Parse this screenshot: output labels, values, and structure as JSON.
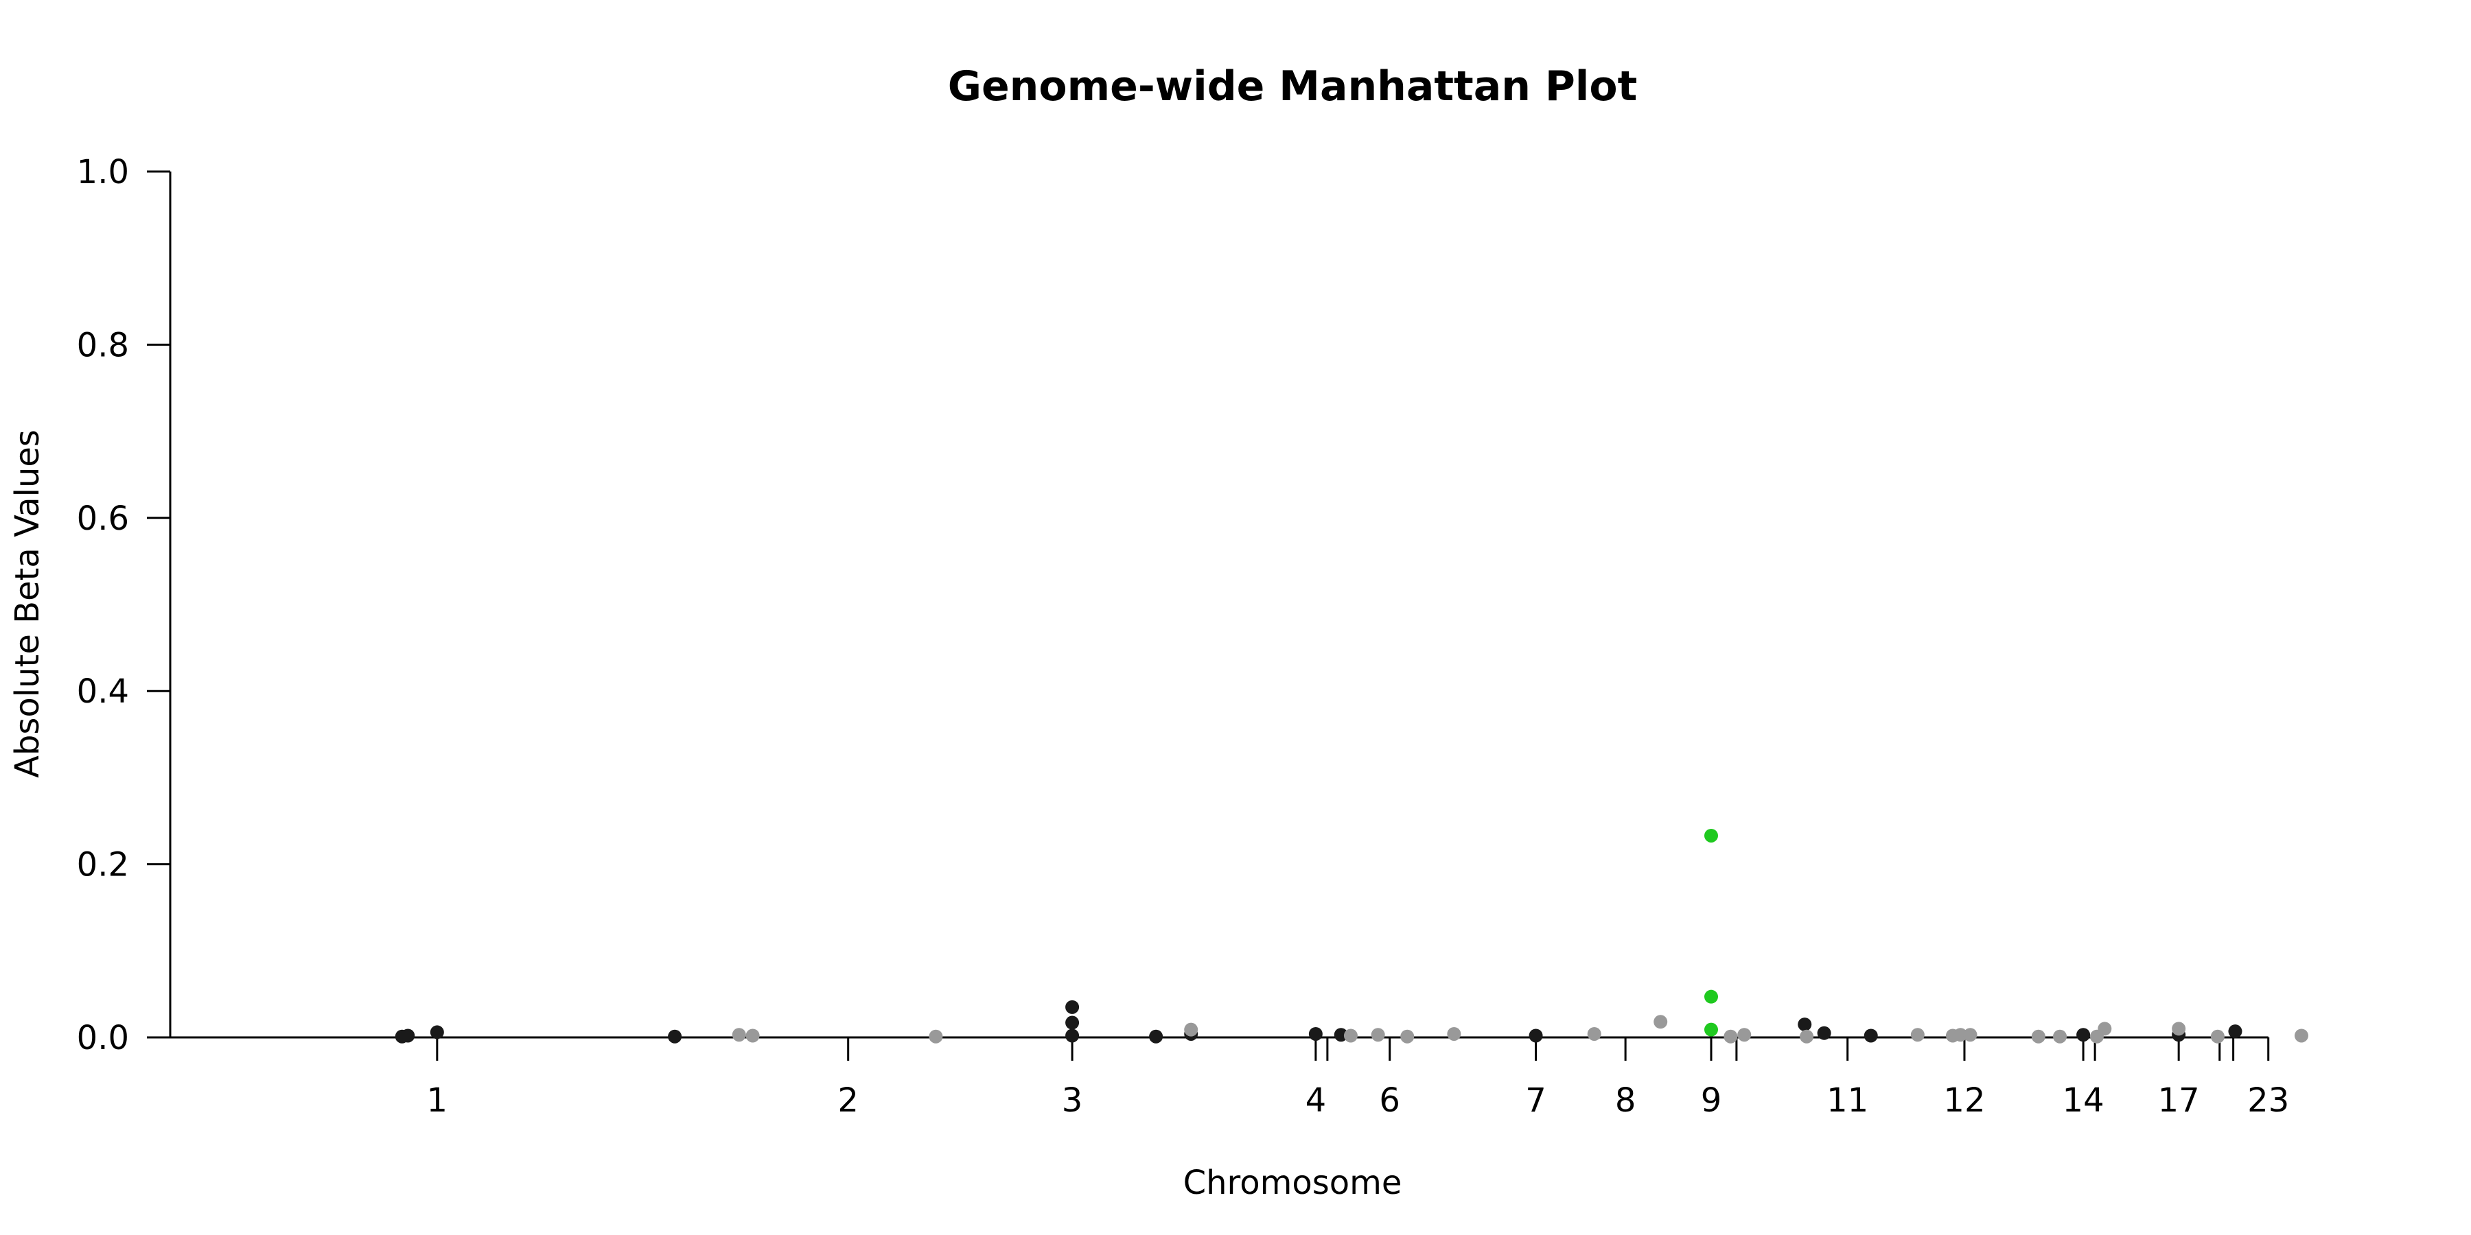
{
  "chart_data": {
    "type": "scatter",
    "title": "Genome-wide Manhattan Plot",
    "xlabel": "Chromosome",
    "ylabel": "Absolute Beta Values",
    "ylim": [
      0,
      1.0
    ],
    "yticks": [
      "0.0",
      "0.2",
      "0.4",
      "0.6",
      "0.8",
      "1.0"
    ],
    "grid": false,
    "legend": "none",
    "colors": {
      "dark": "#1a1a1a",
      "gray": "#999999",
      "highlight": "#1fc91f"
    },
    "chromosomes": [
      {
        "label": "1",
        "pos": 13.7
      },
      {
        "label": "",
        "pos": 0
      },
      {
        "label": "2",
        "pos": 34.8
      },
      {
        "label": "3",
        "pos": 46.3
      },
      {
        "label": "4",
        "pos": 58.8
      },
      {
        "label": "",
        "pos": 59.4
      },
      {
        "label": "6",
        "pos": 62.6
      },
      {
        "label": "7",
        "pos": 70.1
      },
      {
        "label": "8",
        "pos": 74.7
      },
      {
        "label": "9",
        "pos": 79.1
      },
      {
        "label": "",
        "pos": 80.4
      },
      {
        "label": "11",
        "pos": 86.1
      },
      {
        "label": "12",
        "pos": 92.1
      },
      {
        "label": "14",
        "pos": 98.2
      },
      {
        "label": "",
        "pos": 98.8
      },
      {
        "label": "17",
        "pos": 103.1
      },
      {
        "label": "",
        "pos": 105.2
      },
      {
        "label": "",
        "pos": 105.9
      },
      {
        "label": "23",
        "pos": 107.7
      }
    ],
    "xlim": [
      0,
      110
    ],
    "series": [
      {
        "color": "dark",
        "points": [
          [
            11.9,
            0.001
          ],
          [
            12.2,
            0.002
          ],
          [
            13.7,
            0.006
          ],
          [
            25.9,
            0.001
          ],
          [
            46.3,
            0.035
          ],
          [
            46.3,
            0.017
          ],
          [
            46.3,
            0.002
          ],
          [
            50.6,
            0.001
          ],
          [
            52.4,
            0.004
          ],
          [
            58.8,
            0.004
          ],
          [
            60.1,
            0.003
          ],
          [
            70.1,
            0.002
          ],
          [
            83.9,
            0.015
          ],
          [
            84.9,
            0.005
          ],
          [
            87.3,
            0.002
          ],
          [
            98.2,
            0.003
          ],
          [
            103.1,
            0.003
          ],
          [
            106.0,
            0.007
          ]
        ]
      },
      {
        "color": "gray",
        "points": [
          [
            29.2,
            0.003
          ],
          [
            29.9,
            0.002
          ],
          [
            39.3,
            0.001
          ],
          [
            52.4,
            0.009
          ],
          [
            60.6,
            0.002
          ],
          [
            62.0,
            0.003
          ],
          [
            63.5,
            0.001
          ],
          [
            65.9,
            0.004
          ],
          [
            73.1,
            0.004
          ],
          [
            76.5,
            0.018
          ],
          [
            80.1,
            0.001
          ],
          [
            80.8,
            0.003
          ],
          [
            84.0,
            0.001
          ],
          [
            89.7,
            0.003
          ],
          [
            91.5,
            0.002
          ],
          [
            91.9,
            0.003
          ],
          [
            92.4,
            0.003
          ],
          [
            95.9,
            0.001
          ],
          [
            97.0,
            0.001
          ],
          [
            98.9,
            0.001
          ],
          [
            99.3,
            0.01
          ],
          [
            103.1,
            0.01
          ],
          [
            105.1,
            0.001
          ],
          [
            109.4,
            0.002
          ]
        ]
      },
      {
        "color": "highlight",
        "points": [
          [
            79.1,
            0.233
          ],
          [
            79.1,
            0.047
          ],
          [
            79.1,
            0.009
          ]
        ]
      }
    ]
  }
}
